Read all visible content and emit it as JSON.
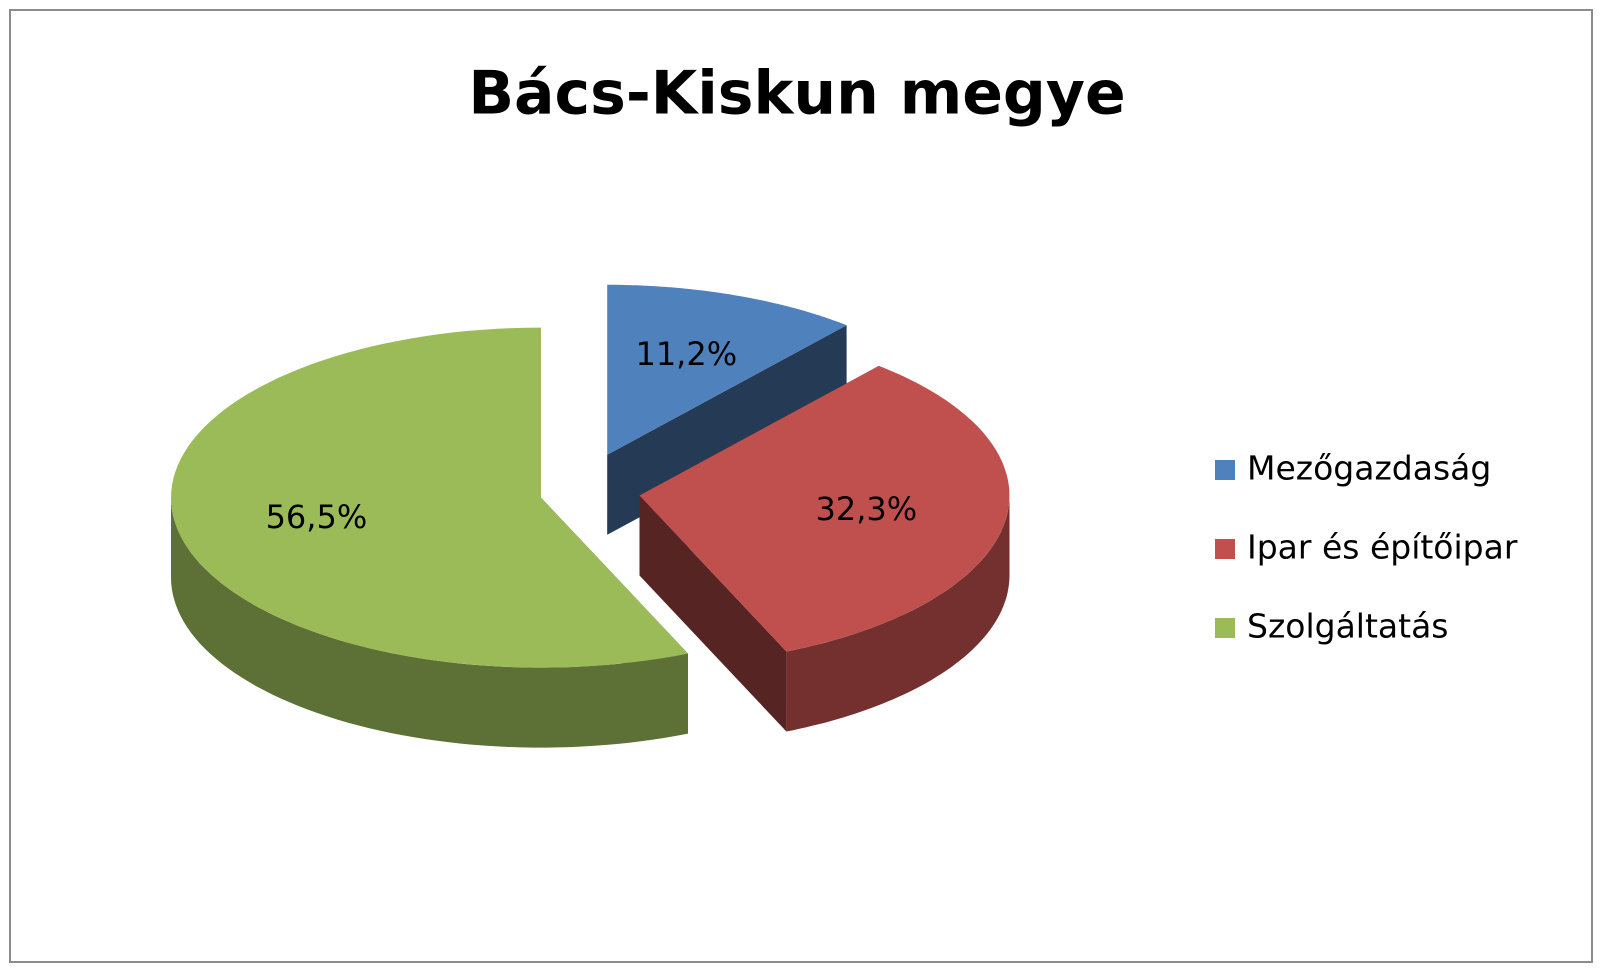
{
  "chart_data": {
    "type": "pie3d",
    "title": "Bács-Kiskun megye",
    "categories": [
      "Mezőgazdaság",
      "Ipar és építőipar",
      "Szolgáltatás"
    ],
    "values": [
      11.2,
      32.3,
      56.5
    ],
    "value_labels": [
      "11,2%",
      "32,3%",
      "56,5%"
    ],
    "colors": [
      "#4f81bd",
      "#c0504d",
      "#9bbb59"
    ],
    "legend": "right"
  }
}
